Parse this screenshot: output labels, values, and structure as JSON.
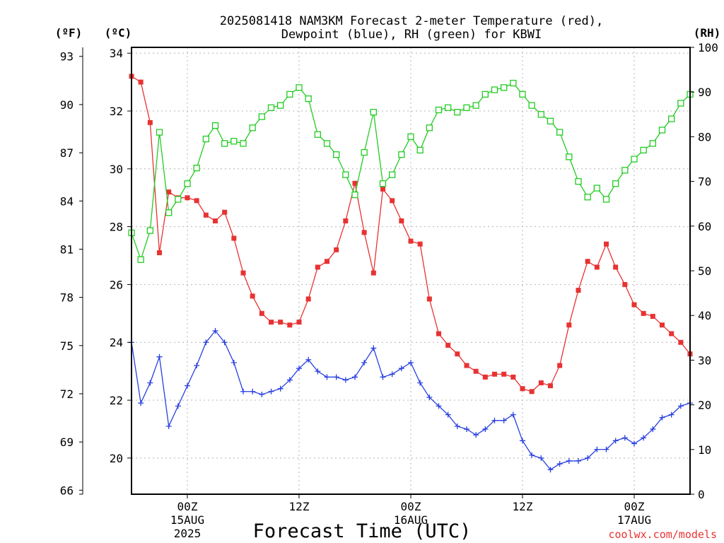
{
  "chart_data": {
    "type": "line",
    "title_line1": "2025081418 NAM3KM Forecast 2-meter Temperature (red),",
    "title_line2": "Dewpoint (blue), RH (green) for KBWI",
    "xlabel": "Forecast Time (UTC)",
    "credit": "coolwx.com/models",
    "unit_fahrenheit": "(ºF)",
    "unit_celsius": "(ºC)",
    "unit_rh": "(RH)",
    "x_range_hours": [
      -6,
      54
    ],
    "ylim_c": [
      18.75,
      34.2
    ],
    "ylim_rh": [
      0,
      100
    ],
    "yticks_c": [
      "20",
      "22",
      "24",
      "26",
      "28",
      "30",
      "32",
      "34"
    ],
    "yticks_f": [
      "66",
      "69",
      "72",
      "75",
      "78",
      "81",
      "84",
      "87",
      "90",
      "93"
    ],
    "yticks_rh": [
      "0",
      "10",
      "20",
      "30",
      "40",
      "50",
      "60",
      "70",
      "80",
      "90",
      "100"
    ],
    "x_ticks": [
      {
        "hour": 0,
        "label": "00Z",
        "date": "15AUG",
        "year": "2025"
      },
      {
        "hour": 12,
        "label": "12Z",
        "date": "",
        "year": ""
      },
      {
        "hour": 24,
        "label": "00Z",
        "date": "16AUG",
        "year": ""
      },
      {
        "hour": 36,
        "label": "12Z",
        "date": "",
        "year": ""
      },
      {
        "hour": 48,
        "label": "00Z",
        "date": "17AUG",
        "year": ""
      }
    ],
    "grid": true,
    "series": [
      {
        "name": "2-meter Temperature",
        "axis": "celsius",
        "color": "#e83232",
        "marker": "filled-square",
        "values": [
          33.2,
          33.0,
          31.6,
          27.1,
          29.2,
          29.0,
          29.0,
          28.9,
          28.4,
          28.2,
          28.5,
          27.6,
          26.4,
          25.6,
          25.0,
          24.7,
          24.7,
          24.6,
          24.7,
          25.5,
          26.6,
          26.8,
          27.2,
          28.2,
          29.5,
          27.8,
          26.4,
          29.3,
          28.9,
          28.2,
          27.5,
          27.4,
          25.5,
          24.3,
          23.9,
          23.6,
          23.2,
          23.0,
          22.8,
          22.9,
          22.9,
          22.8,
          22.4,
          22.3,
          22.6,
          22.5,
          23.2,
          24.6,
          25.8,
          26.8,
          26.6,
          27.4,
          26.6,
          26.0,
          25.3,
          25.0,
          24.9,
          24.6,
          24.3,
          24.0,
          23.6
        ]
      },
      {
        "name": "Dewpoint",
        "axis": "celsius",
        "color": "#2840e0",
        "marker": "plus",
        "values": [
          24.0,
          21.9,
          22.6,
          23.5,
          21.1,
          21.8,
          22.5,
          23.2,
          24.0,
          24.4,
          24.0,
          23.3,
          22.3,
          22.3,
          22.2,
          22.3,
          22.4,
          22.7,
          23.1,
          23.4,
          23.0,
          22.8,
          22.8,
          22.7,
          22.8,
          23.3,
          23.8,
          22.8,
          22.9,
          23.1,
          23.3,
          22.6,
          22.1,
          21.8,
          21.5,
          21.1,
          21.0,
          20.8,
          21.0,
          21.3,
          21.3,
          21.5,
          20.6,
          20.1,
          20.0,
          19.6,
          19.8,
          19.9,
          19.9,
          20.0,
          20.3,
          20.3,
          20.6,
          20.7,
          20.5,
          20.7,
          21.0,
          21.4,
          21.5,
          21.8,
          21.9
        ]
      },
      {
        "name": "RH",
        "axis": "rh",
        "color": "#22cc22",
        "marker": "open-square",
        "values": [
          58.5,
          52.5,
          59.0,
          81.0,
          63.0,
          66.0,
          69.5,
          73.0,
          79.5,
          82.5,
          78.5,
          79.0,
          78.5,
          82.0,
          84.5,
          86.5,
          87.0,
          89.5,
          91.0,
          88.5,
          80.5,
          78.5,
          76.0,
          71.5,
          67.0,
          76.5,
          85.5,
          69.5,
          71.5,
          76.0,
          80.0,
          77.0,
          82.0,
          86.0,
          86.5,
          85.5,
          86.5,
          87.0,
          89.5,
          90.5,
          91.0,
          92.0,
          89.5,
          87.0,
          85.0,
          83.5,
          81.0,
          75.5,
          70.0,
          66.5,
          68.5,
          66.0,
          69.5,
          72.5,
          75.0,
          77.0,
          78.5,
          81.5,
          84.0,
          87.5,
          89.5
        ]
      }
    ]
  }
}
